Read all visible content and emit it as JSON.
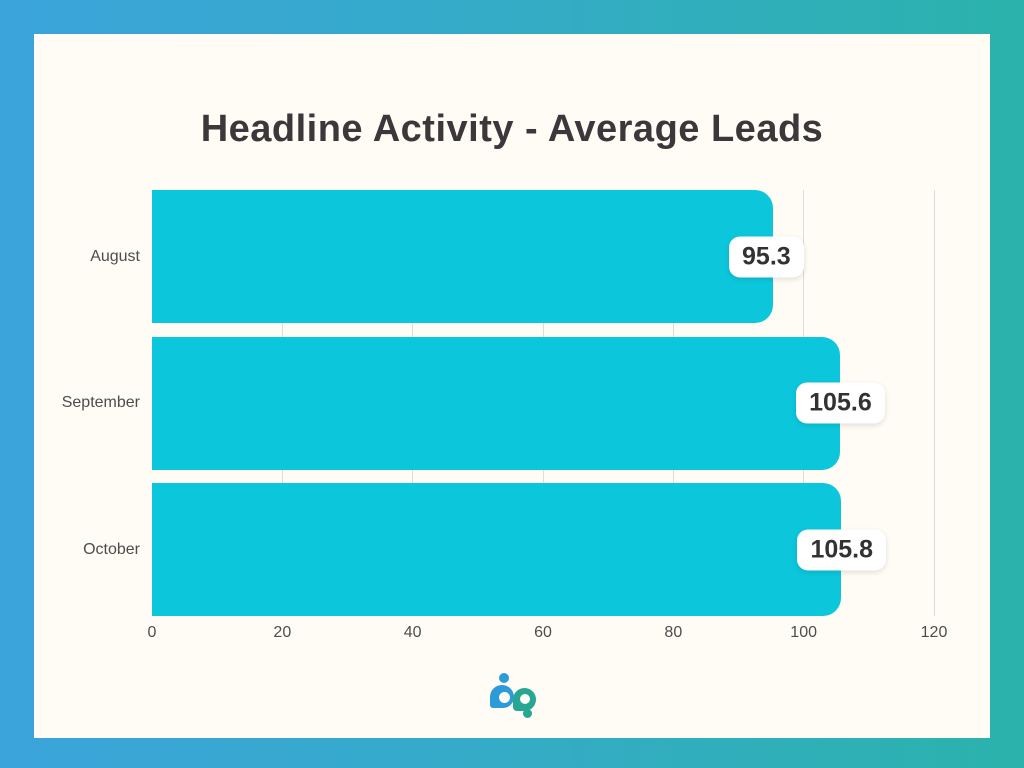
{
  "page": {
    "gradient_left": "#3ba4db",
    "gradient_right": "#2bb2ac",
    "card_background": "#fffcf5"
  },
  "chart_data": {
    "type": "bar",
    "orientation": "horizontal",
    "title": "Headline Activity - Average Leads",
    "categories": [
      "August",
      "September",
      "October"
    ],
    "values": [
      95.3,
      105.6,
      105.8
    ],
    "value_labels": [
      "95.3",
      "105.6",
      "105.8"
    ],
    "xlabel": "",
    "ylabel": "",
    "xlim": [
      0,
      120
    ],
    "x_ticks": [
      0,
      20,
      40,
      60,
      80,
      100,
      120
    ],
    "grid": "vertical gridlines at each x tick, light gray, behind bars",
    "legend": "none",
    "bar_color": "#0cc7dc",
    "gridline_color": "#dcdcdc",
    "title_color": "#3a383a",
    "axis_label_color": "#4d4d4d",
    "value_badge_background": "#ffffff",
    "value_badge_text_color": "#323232"
  },
  "logo": {
    "name": "bp",
    "blue": "#2d9bd8",
    "teal": "#27a793"
  }
}
